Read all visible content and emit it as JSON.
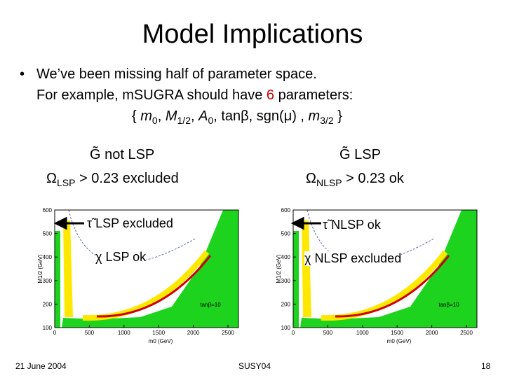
{
  "header": {
    "title": "Model Implications"
  },
  "bullet": {
    "lines": [
      {
        "segments": [
          {
            "text": "We’ve been missing half of parameter space.",
            "style": "plain"
          }
        ]
      },
      {
        "segments": [
          {
            "text": "For example, mSUGRA should have ",
            "style": "plain"
          },
          {
            "text": "6",
            "style": "red"
          },
          {
            "text": " parameters:",
            "style": "plain"
          }
        ]
      },
      {
        "segments": [
          {
            "text": "{ ",
            "style": "plain"
          },
          {
            "text": "m",
            "style": "italic"
          },
          {
            "text": "0",
            "style": "sub"
          },
          {
            "text": ", ",
            "style": "plain"
          },
          {
            "text": "M",
            "style": "italic"
          },
          {
            "text": "1/2",
            "style": "sub"
          },
          {
            "text": ", ",
            "style": "plain"
          },
          {
            "text": "A",
            "style": "italic"
          },
          {
            "text": "0",
            "style": "sub"
          },
          {
            "text": ", tanβ, sgn(μ) , ",
            "style": "plain"
          },
          {
            "text": "m",
            "style": "italic"
          },
          {
            "text": "3/2",
            "style": "sub"
          },
          {
            "text": " }",
            "style": "plain"
          }
        ]
      }
    ]
  },
  "panels": [
    {
      "heading": {
        "segments": [
          {
            "text": "G̃ not LSP",
            "style": "plain"
          }
        ]
      },
      "omega": {
        "segments": [
          {
            "text": "Ω",
            "style": "plain"
          },
          {
            "text": "LSP",
            "style": "sub"
          },
          {
            "text": " > 0.23 excluded",
            "style": "plain"
          }
        ]
      },
      "annotations": [
        {
          "segments": [
            {
              "text": "τ̃ LSP excluded",
              "style": "plain"
            }
          ]
        },
        {
          "segments": [
            {
              "text": "χ LSP ok",
              "style": "plain"
            }
          ]
        }
      ],
      "plot": {
        "yticks": [
          100,
          200,
          300,
          400,
          500,
          600
        ],
        "xticks": [
          0,
          500,
          1000,
          1500,
          2000,
          2500
        ],
        "ylabel": "M1/2 (GeV)",
        "xlabel": "m0 (GeV)",
        "note": "tanβ=10"
      }
    },
    {
      "heading": {
        "segments": [
          {
            "text": "G̃ LSP",
            "style": "plain"
          }
        ]
      },
      "omega": {
        "segments": [
          {
            "text": "Ω",
            "style": "plain"
          },
          {
            "text": "NLSP",
            "style": "sub"
          },
          {
            "text": " > 0.23 ok",
            "style": "plain"
          }
        ]
      },
      "annotations": [
        {
          "segments": [
            {
              "text": "τ̃ NLSP ok",
              "style": "plain"
            }
          ]
        },
        {
          "segments": [
            {
              "text": "χ NLSP excluded",
              "style": "plain"
            }
          ]
        }
      ],
      "plot": {
        "yticks": [
          100,
          200,
          300,
          400,
          500,
          600
        ],
        "xticks": [
          0,
          500,
          1000,
          1500,
          2000,
          2500
        ],
        "ylabel": "M1/2 (GeV)",
        "xlabel": "m0 (GeV)",
        "note": "tanβ=10"
      }
    }
  ],
  "footer": {
    "date": "21 June 2004",
    "venue": "SUSY04",
    "page": "18"
  }
}
